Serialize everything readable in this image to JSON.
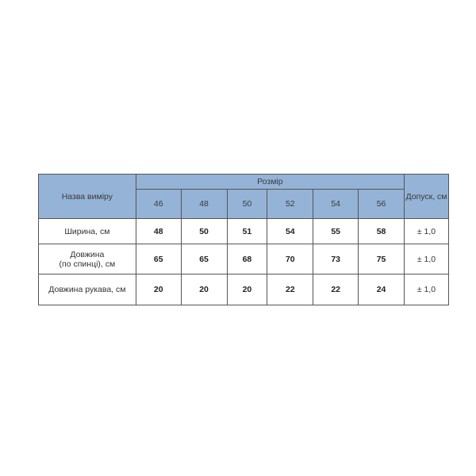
{
  "header": {
    "name_col": "Назва виміру",
    "size_group": "Розмір",
    "tolerance_col": "Допуск, см",
    "sizes": [
      "46",
      "48",
      "50",
      "52",
      "54",
      "56"
    ]
  },
  "rows": [
    {
      "label": "Ширина, см",
      "values": [
        "48",
        "50",
        "51",
        "54",
        "55",
        "58"
      ],
      "tolerance": "± 1,0"
    },
    {
      "label_line1": "Довжина",
      "label_line2": "(по спинці), см",
      "values": [
        "65",
        "65",
        "68",
        "70",
        "73",
        "75"
      ],
      "tolerance": "± 1,0"
    },
    {
      "label": "Довжина рукава, см",
      "values": [
        "20",
        "20",
        "20",
        "22",
        "22",
        "24"
      ],
      "tolerance": "± 1,0"
    }
  ],
  "colors": {
    "header_bg": "#95b3d7",
    "border": "#555555"
  }
}
